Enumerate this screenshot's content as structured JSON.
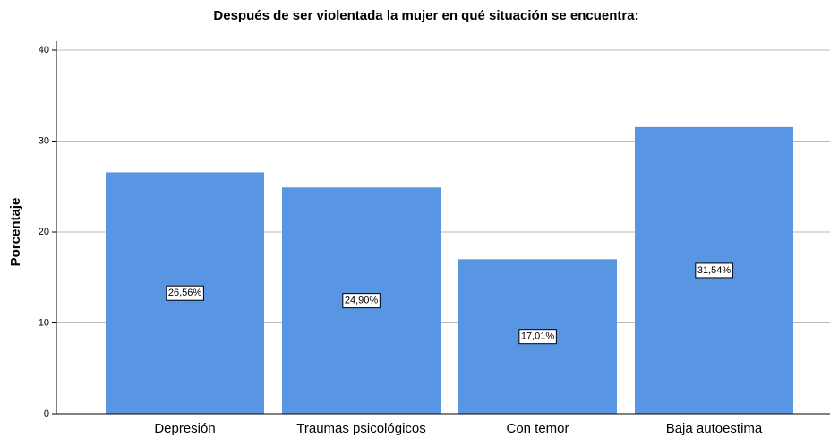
{
  "chart_data": {
    "type": "bar",
    "title": "Después de ser violentada la mujer en qué situación se encuentra:",
    "y_label": "Porcentaje",
    "categories": [
      "Depresión",
      "Traumas psicológicos",
      "Con temor",
      "Baja autoestima"
    ],
    "values": [
      26.56,
      24.9,
      17.01,
      31.54
    ],
    "value_labels": [
      "26,56%",
      "24,90%",
      "17,01%",
      "31,54%"
    ],
    "color": "#5895e3",
    "ylim": [
      0,
      40
    ],
    "yticks": [
      0,
      10,
      20,
      30,
      40
    ],
    "grid": true
  }
}
